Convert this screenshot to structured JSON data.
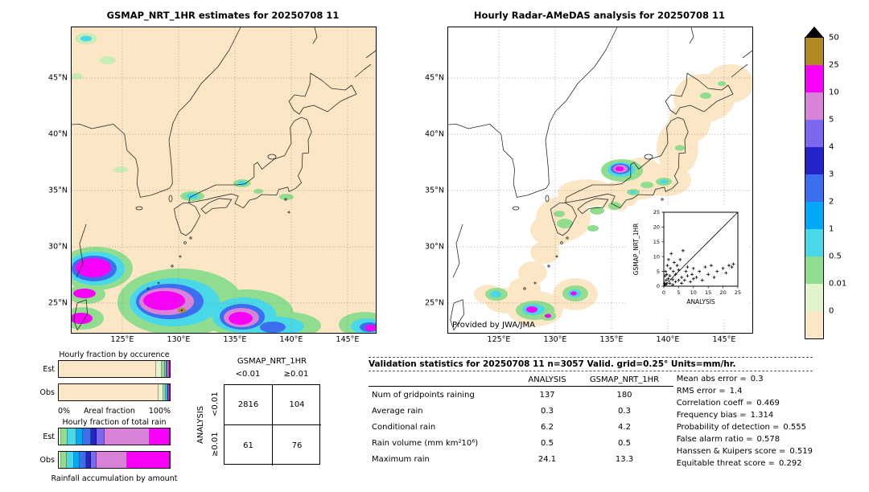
{
  "left_map": {
    "title": "GSMAP_NRT_1HR estimates for 20250708 11"
  },
  "right_map": {
    "title": "Hourly Radar-AMeDAS analysis for 20250708 11",
    "credit": "Provided by JWA/JMA",
    "inset": {
      "xlabel": "ANALYSIS",
      "ylabel": "GSMAP_NRT_1HR",
      "ticks": [
        "0",
        "5",
        "10",
        "15",
        "20",
        "25"
      ]
    }
  },
  "map_axes": {
    "lat_ticks": [
      "45°N",
      "40°N",
      "35°N",
      "30°N",
      "25°N"
    ],
    "lon_ticks": [
      "125°E",
      "130°E",
      "135°E",
      "140°E",
      "145°E"
    ]
  },
  "colorbar": {
    "labels": [
      "50",
      "25",
      "10",
      "5",
      "4",
      "3",
      "2",
      "1",
      "0.5",
      "0.01",
      "0"
    ],
    "colors": [
      "#b08a20",
      "#f800f8",
      "#d883d8",
      "#7b68ee",
      "#2424c8",
      "#3c6ef0",
      "#00a8f8",
      "#48d8e8",
      "#90dd90",
      "#e2f4cc",
      "#fbe7c6"
    ]
  },
  "fraction_panels": {
    "occurrence": {
      "title": "Hourly fraction by occurence",
      "row_labels": [
        "Est",
        "Obs"
      ],
      "axis_left": "0%",
      "axis_label": "Areal fraction",
      "axis_right": "100%",
      "rows": [
        [
          [
            "#fbe7c6",
            87.5
          ],
          [
            "#e2f4cc",
            5
          ],
          [
            "#90dd90",
            3
          ],
          [
            "#48d8e8",
            1.3
          ],
          [
            "#3c6ef0",
            1
          ],
          [
            "#d883d8",
            1.2
          ],
          [
            "#f800f8",
            1
          ]
        ],
        [
          [
            "#fbe7c6",
            89.5
          ],
          [
            "#e2f4cc",
            4.5
          ],
          [
            "#90dd90",
            2.5
          ],
          [
            "#48d8e8",
            1
          ],
          [
            "#3c6ef0",
            0.8
          ],
          [
            "#d883d8",
            1
          ],
          [
            "#f800f8",
            0.7
          ]
        ]
      ]
    },
    "total_rain": {
      "title": "Hourly fraction of total rain",
      "row_labels": [
        "Est",
        "Obs"
      ],
      "footer": "Rainfall accumulation by amount",
      "rows": [
        [
          [
            "#e2f4cc",
            2
          ],
          [
            "#90dd90",
            6
          ],
          [
            "#48d8e8",
            8
          ],
          [
            "#00a8f8",
            6
          ],
          [
            "#3c6ef0",
            7
          ],
          [
            "#2424c8",
            5
          ],
          [
            "#7b68ee",
            7
          ],
          [
            "#d883d8",
            41
          ],
          [
            "#f800f8",
            18
          ]
        ],
        [
          [
            "#e2f4cc",
            2
          ],
          [
            "#90dd90",
            5
          ],
          [
            "#48d8e8",
            7
          ],
          [
            "#00a8f8",
            5
          ],
          [
            "#3c6ef0",
            6
          ],
          [
            "#2424c8",
            4
          ],
          [
            "#7b68ee",
            5
          ],
          [
            "#d883d8",
            28
          ],
          [
            "#f800f8",
            38
          ]
        ]
      ]
    }
  },
  "contingency": {
    "col_group": "GSMAP_NRT_1HR",
    "row_group": "ANALYSIS",
    "col_labels": [
      "<0.01",
      "≥0.01"
    ],
    "row_labels": [
      "<0.01",
      "≥0.01"
    ],
    "cells": [
      [
        "2816",
        "104"
      ],
      [
        "61",
        "76"
      ]
    ]
  },
  "validation": {
    "title": "Validation statistics for 20250708 11  n=3057 Valid. grid=0.25° Units=mm/hr.",
    "table": {
      "col_headers": [
        "ANALYSIS",
        "GSMAP_NRT_1HR"
      ],
      "rows": [
        {
          "label": "Num of gridpoints raining",
          "values": [
            "137",
            "180"
          ]
        },
        {
          "label": "Average rain",
          "values": [
            "0.3",
            "0.3"
          ]
        },
        {
          "label": "Conditional rain",
          "values": [
            "6.2",
            "4.2"
          ]
        },
        {
          "label": "Rain volume (mm km²10⁶)",
          "values": [
            "0.5",
            "0.5"
          ]
        },
        {
          "label": "Maximum rain",
          "values": [
            "24.1",
            "13.3"
          ]
        }
      ]
    },
    "stats": [
      {
        "label": "Mean abs error =",
        "value": "0.3"
      },
      {
        "label": "RMS error =",
        "value": "1.4"
      },
      {
        "label": "Correlation coeff =",
        "value": "0.469"
      },
      {
        "label": "Frequency bias =",
        "value": "1.314"
      },
      {
        "label": "Probability of detection =",
        "value": "0.555"
      },
      {
        "label": "False alarm ratio =",
        "value": "0.578"
      },
      {
        "label": "Hanssen & Kuipers score =",
        "value": "0.519"
      },
      {
        "label": "Equitable threat score =",
        "value": "0.292"
      }
    ]
  },
  "chart_data": [
    {
      "type": "heatmap",
      "panel": "left",
      "title": "GSMAP_NRT_1HR estimates for 20250708 11",
      "units": "mm/hr",
      "scale_levels": [
        0,
        0.01,
        0.5,
        1,
        2,
        3,
        4,
        5,
        10,
        25,
        50
      ],
      "scale_colors": [
        "#fbe7c6",
        "#e2f4cc",
        "#90dd90",
        "#48d8e8",
        "#00a8f8",
        "#3c6ef0",
        "#2424c8",
        "#7b68ee",
        "#d883d8",
        "#f800f8",
        "#b08a20"
      ],
      "lon_range": [
        120.5,
        147.5
      ],
      "lat_range": [
        22.3,
        49.5
      ],
      "lon_ticks": [
        125,
        130,
        135,
        140,
        145
      ],
      "lat_ticks": [
        25,
        30,
        35,
        40,
        45
      ],
      "max_rain": 13.3
    },
    {
      "type": "heatmap",
      "panel": "right",
      "title": "Hourly Radar-AMeDAS analysis for 20250708 11",
      "units": "mm/hr",
      "scale_levels": [
        0,
        0.01,
        0.5,
        1,
        2,
        3,
        4,
        5,
        10,
        25,
        50
      ],
      "scale_colors": [
        "#fbe7c6",
        "#e2f4cc",
        "#90dd90",
        "#48d8e8",
        "#00a8f8",
        "#3c6ef0",
        "#2424c8",
        "#7b68ee",
        "#d883d8",
        "#f800f8",
        "#b08a20"
      ],
      "lon_range": [
        120.5,
        147.5
      ],
      "lat_range": [
        22.3,
        49.5
      ],
      "lon_ticks": [
        125,
        130,
        135,
        140,
        145
      ],
      "lat_ticks": [
        25,
        30,
        35,
        40,
        45
      ],
      "max_rain": 24.1
    },
    {
      "type": "bar",
      "stacked": true,
      "orientation": "horizontal",
      "title": "Hourly fraction by occurence",
      "categories": [
        "Est",
        "Obs"
      ],
      "xlabel": "Areal fraction",
      "xlim": [
        0,
        100
      ],
      "series": [
        {
          "name": "Est",
          "values": [
            87.5,
            5,
            3,
            1.3,
            1,
            1.2,
            1
          ]
        },
        {
          "name": "Obs",
          "values": [
            89.5,
            4.5,
            2.5,
            1,
            0.8,
            1,
            0.7
          ]
        }
      ]
    },
    {
      "type": "bar",
      "stacked": true,
      "orientation": "horizontal",
      "title": "Hourly fraction of total rain",
      "categories": [
        "Est",
        "Obs"
      ],
      "xlabel": "Rainfall accumulation by amount",
      "xlim": [
        0,
        100
      ],
      "series": [
        {
          "name": "Est",
          "values": [
            2,
            6,
            8,
            6,
            7,
            5,
            7,
            41,
            18
          ]
        },
        {
          "name": "Obs",
          "values": [
            2,
            5,
            7,
            5,
            6,
            4,
            5,
            28,
            38
          ]
        }
      ]
    },
    {
      "type": "table",
      "title": "Contingency table",
      "col_group": "GSMAP_NRT_1HR",
      "row_group": "ANALYSIS",
      "columns": [
        "<0.01",
        "≥0.01"
      ],
      "row_labels": [
        "<0.01",
        "≥0.01"
      ],
      "values": [
        [
          2816,
          104
        ],
        [
          61,
          76
        ]
      ]
    },
    {
      "type": "table",
      "title": "Validation statistics for 20250708 11",
      "n": 3057,
      "grid": "0.25°",
      "units": "mm/hr",
      "columns": [
        "",
        "ANALYSIS",
        "GSMAP_NRT_1HR"
      ],
      "rows": [
        [
          "Num of gridpoints raining",
          137,
          180
        ],
        [
          "Average rain",
          0.3,
          0.3
        ],
        [
          "Conditional rain",
          6.2,
          4.2
        ],
        [
          "Rain volume (mm km²10⁶)",
          0.5,
          0.5
        ],
        [
          "Maximum rain",
          24.1,
          13.3
        ]
      ],
      "stats": {
        "mean_abs_error": 0.3,
        "rms_error": 1.4,
        "correlation_coeff": 0.469,
        "frequency_bias": 1.314,
        "probability_of_detection": 0.555,
        "false_alarm_ratio": 0.578,
        "hanssen_kuipers_score": 0.519,
        "equitable_threat_score": 0.292
      }
    },
    {
      "type": "scatter",
      "title": "GSMAP_NRT_1HR vs ANALYSIS",
      "xlabel": "ANALYSIS",
      "ylabel": "GSMAP_NRT_1HR",
      "xlim": [
        0,
        25
      ],
      "ylim": [
        0,
        25
      ],
      "x": [
        0.3,
        0.4,
        0.5,
        0.6,
        0.8,
        1,
        1,
        1.2,
        1.5,
        1.6,
        2,
        2,
        2.2,
        2.5,
        3,
        3,
        3.2,
        3.5,
        4,
        4,
        4.5,
        5,
        5,
        5.5,
        6,
        6,
        6.5,
        7,
        7.5,
        8,
        8,
        9,
        9.5,
        10,
        10,
        11,
        12,
        13,
        14,
        15,
        16,
        17,
        18,
        20,
        21,
        22,
        23,
        23.5
      ],
      "y": [
        1,
        3.5,
        0.5,
        5,
        2,
        0.8,
        4,
        7,
        2.5,
        9,
        1,
        3.5,
        6,
        11,
        0.5,
        2.2,
        5,
        8,
        1.5,
        4,
        7,
        2,
        5.5,
        9,
        1,
        3,
        12,
        2,
        5,
        3.5,
        6.5,
        1.5,
        4,
        2.5,
        6,
        3,
        5,
        2,
        6.5,
        4,
        7,
        3,
        5,
        6,
        4.5,
        7,
        6.5,
        7.5
      ]
    }
  ]
}
